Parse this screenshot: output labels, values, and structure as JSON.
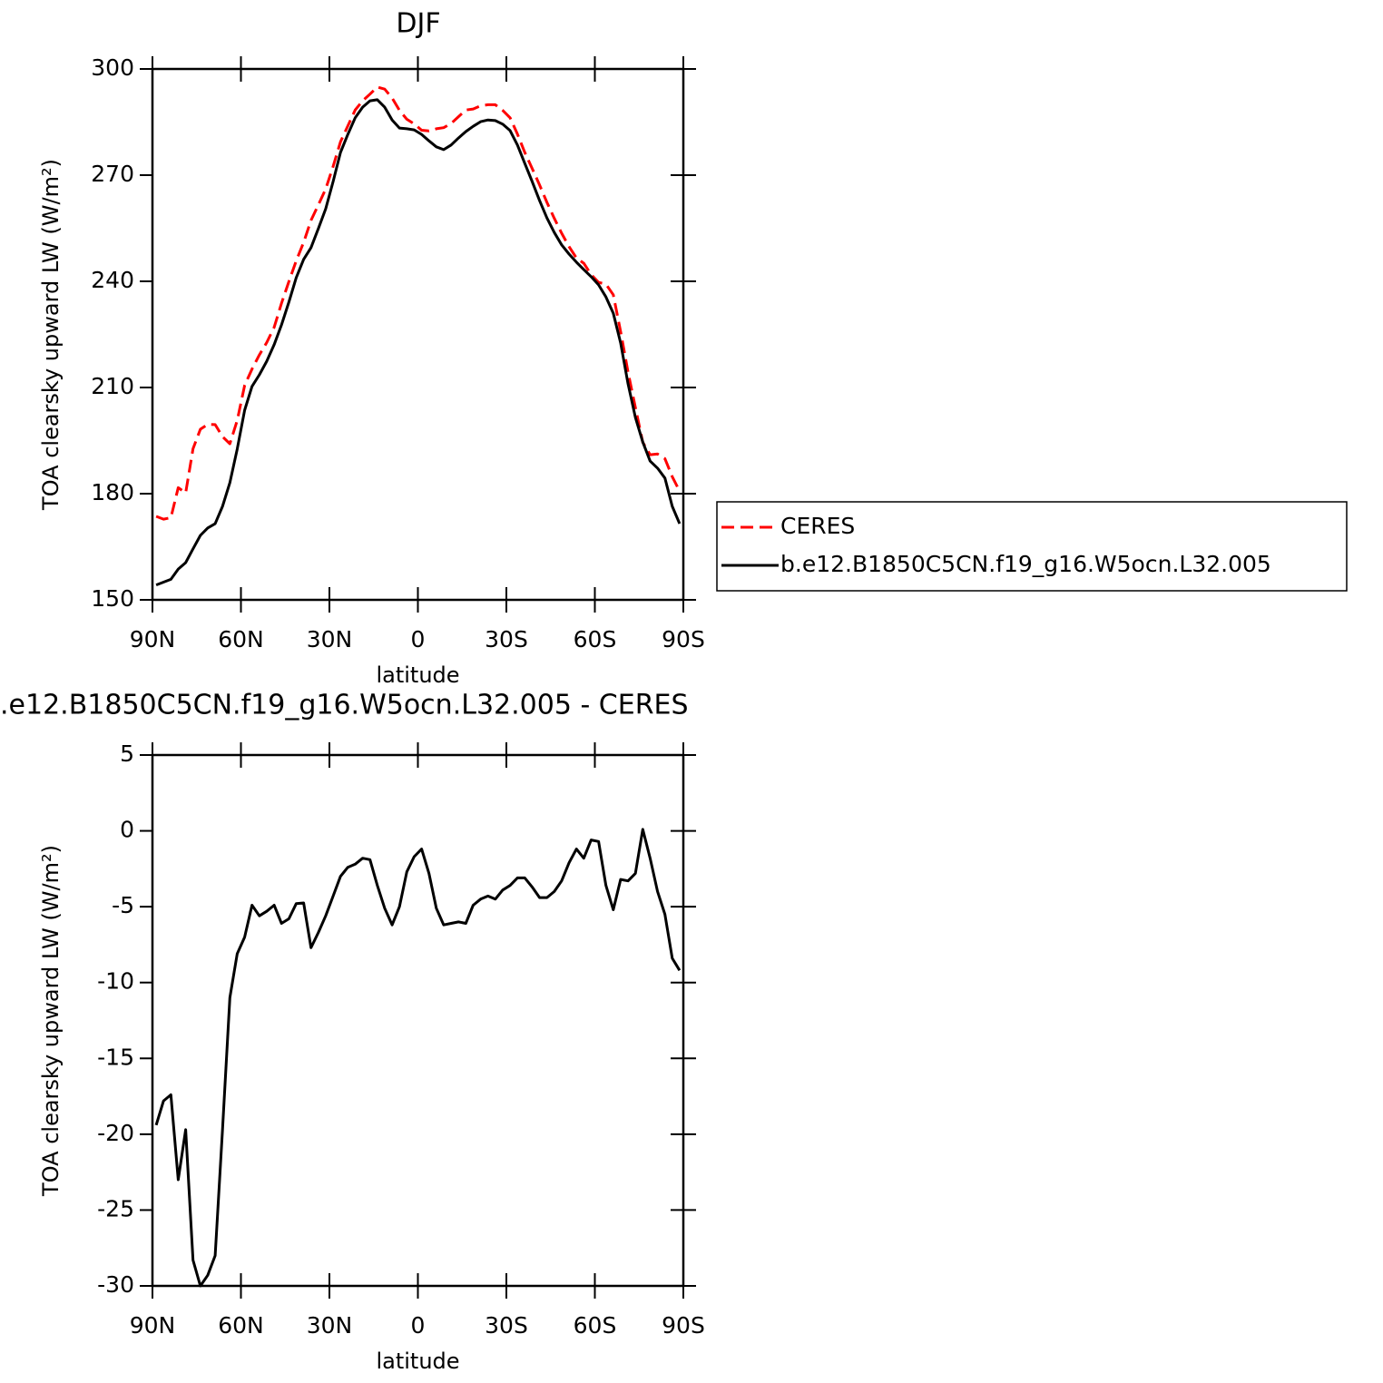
{
  "chart_data": [
    {
      "type": "line",
      "title": "DJF",
      "xlabel": "latitude",
      "ylabel": "TOA clearsky upward LW (W/m²)",
      "x": [
        88.75,
        86.25,
        83.75,
        81.25,
        78.75,
        76.25,
        73.75,
        71.25,
        68.75,
        66.25,
        63.75,
        61.25,
        58.75,
        56.25,
        53.75,
        51.25,
        48.75,
        46.25,
        43.75,
        41.25,
        38.75,
        36.25,
        33.75,
        31.25,
        28.75,
        26.25,
        23.75,
        21.25,
        18.75,
        16.25,
        13.75,
        11.25,
        8.75,
        6.25,
        3.75,
        1.25,
        -1.25,
        -3.75,
        -6.25,
        -8.75,
        -11.25,
        -13.75,
        -16.25,
        -18.75,
        -21.25,
        -23.75,
        -26.25,
        -28.75,
        -31.25,
        -33.75,
        -36.25,
        -38.75,
        -41.25,
        -43.75,
        -46.25,
        -48.75,
        -51.25,
        -53.75,
        -56.25,
        -58.75,
        -61.25,
        -63.75,
        -66.25,
        -68.75,
        -71.25,
        -73.75,
        -76.25,
        -78.75,
        -81.25,
        -83.75,
        -86.25,
        -88.75
      ],
      "xlim": [
        90,
        -90
      ],
      "xticks": [
        {
          "value": 90,
          "label": "90N"
        },
        {
          "value": 60,
          "label": "60N"
        },
        {
          "value": 30,
          "label": "30N"
        },
        0,
        {
          "value": -30,
          "label": "30S"
        },
        {
          "value": -60,
          "label": "60S"
        },
        {
          "value": -90,
          "label": "90S"
        }
      ],
      "ylim": [
        150,
        300
      ],
      "yticks": [
        150,
        180,
        210,
        240,
        270,
        300
      ],
      "legend": "right",
      "series": [
        {
          "name": "CERES",
          "color": "#ff0000",
          "line_style": "dashed",
          "values": [
            173.6,
            172.8,
            173.2,
            181.7,
            180.2,
            192.7,
            198.2,
            199.6,
            199.5,
            196.1,
            194.1,
            200.7,
            210.6,
            215.2,
            219.2,
            222.7,
            227.0,
            233.8,
            239.9,
            245.8,
            251.0,
            257.2,
            261.6,
            266.1,
            272.5,
            279.4,
            283.9,
            288.4,
            291.0,
            292.9,
            294.9,
            294.3,
            291.8,
            288.3,
            285.8,
            284.5,
            282.7,
            282.5,
            283.1,
            283.4,
            284.6,
            286.5,
            288.4,
            288.7,
            289.6,
            289.9,
            289.9,
            288.3,
            286.2,
            281.6,
            276.4,
            271.9,
            267.2,
            262.3,
            257.8,
            253.6,
            249.8,
            246.6,
            245.1,
            241.9,
            239.7,
            239.2,
            236.2,
            225.8,
            214.3,
            204.3,
            194.5,
            191.0,
            191.2,
            189.9,
            184.8,
            180.7
          ]
        },
        {
          "name": "b.e12.B1850C5CN.f19_g16.W5ocn.L32.005",
          "color": "#000000",
          "line_style": "solid",
          "values": [
            154.2,
            155.0,
            155.8,
            158.7,
            160.5,
            164.4,
            168.2,
            170.3,
            171.5,
            176.4,
            183.1,
            192.6,
            203.6,
            210.3,
            213.6,
            217.4,
            222.1,
            227.7,
            234.1,
            241.0,
            246.2,
            249.5,
            254.9,
            260.5,
            268.2,
            276.4,
            281.5,
            286.2,
            289.2,
            291.0,
            291.3,
            289.2,
            285.6,
            283.3,
            283.1,
            282.8,
            281.5,
            279.7,
            278.0,
            277.2,
            278.5,
            280.5,
            282.3,
            283.8,
            285.1,
            285.6,
            285.4,
            284.4,
            282.6,
            278.5,
            273.3,
            268.2,
            262.8,
            257.9,
            253.8,
            250.3,
            247.7,
            245.4,
            243.3,
            241.3,
            239.0,
            235.6,
            231.0,
            222.6,
            211.0,
            201.5,
            194.6,
            189.2,
            187.2,
            184.4,
            176.4,
            171.5
          ]
        }
      ]
    },
    {
      "type": "line",
      "title": ".e12.B1850C5CN.f19_g16.W5ocn.L32.005 - CERES",
      "xlabel": "latitude",
      "ylabel": "TOA clearsky upward LW (W/m²)",
      "x": [
        88.75,
        86.25,
        83.75,
        81.25,
        78.75,
        76.25,
        73.75,
        71.25,
        68.75,
        66.25,
        63.75,
        61.25,
        58.75,
        56.25,
        53.75,
        51.25,
        48.75,
        46.25,
        43.75,
        41.25,
        38.75,
        36.25,
        33.75,
        31.25,
        28.75,
        26.25,
        23.75,
        21.25,
        18.75,
        16.25,
        13.75,
        11.25,
        8.75,
        6.25,
        3.75,
        1.25,
        -1.25,
        -3.75,
        -6.25,
        -8.75,
        -11.25,
        -13.75,
        -16.25,
        -18.75,
        -21.25,
        -23.75,
        -26.25,
        -28.75,
        -31.25,
        -33.75,
        -36.25,
        -38.75,
        -41.25,
        -43.75,
        -46.25,
        -48.75,
        -51.25,
        -53.75,
        -56.25,
        -58.75,
        -61.25,
        -63.75,
        -66.25,
        -68.75,
        -71.25,
        -73.75,
        -76.25,
        -78.75,
        -81.25,
        -83.75,
        -86.25,
        -88.75
      ],
      "xlim": [
        90,
        -90
      ],
      "xticks": [
        {
          "value": 90,
          "label": "90N"
        },
        {
          "value": 60,
          "label": "60N"
        },
        {
          "value": 30,
          "label": "30N"
        },
        0,
        {
          "value": -30,
          "label": "30S"
        },
        {
          "value": -60,
          "label": "60S"
        },
        {
          "value": -90,
          "label": "90S"
        }
      ],
      "ylim": [
        -30,
        5
      ],
      "yticks": [
        -30,
        -25,
        -20,
        -15,
        -10,
        -5,
        0,
        5
      ],
      "color": "#000000",
      "values": [
        -19.4,
        -17.8,
        -17.4,
        -23.0,
        -19.7,
        -28.3,
        -30.0,
        -29.3,
        -28.0,
        -19.7,
        -11.0,
        -8.1,
        -7.0,
        -4.9,
        -5.6,
        -5.3,
        -4.9,
        -6.1,
        -5.8,
        -4.8,
        -4.75,
        -7.7,
        -6.7,
        -5.6,
        -4.3,
        -3.0,
        -2.4,
        -2.2,
        -1.8,
        -1.9,
        -3.6,
        -5.1,
        -6.2,
        -5.0,
        -2.7,
        -1.7,
        -1.2,
        -2.8,
        -5.1,
        -6.2,
        -6.1,
        -6.0,
        -6.1,
        -4.9,
        -4.5,
        -4.3,
        -4.5,
        -3.9,
        -3.6,
        -3.1,
        -3.1,
        -3.7,
        -4.4,
        -4.4,
        -4.0,
        -3.3,
        -2.1,
        -1.2,
        -1.8,
        -0.6,
        -0.7,
        -3.6,
        -5.2,
        -3.2,
        -3.3,
        -2.8,
        0.1,
        -1.8,
        -4.0,
        -5.5,
        -8.4,
        -9.2
      ]
    }
  ]
}
